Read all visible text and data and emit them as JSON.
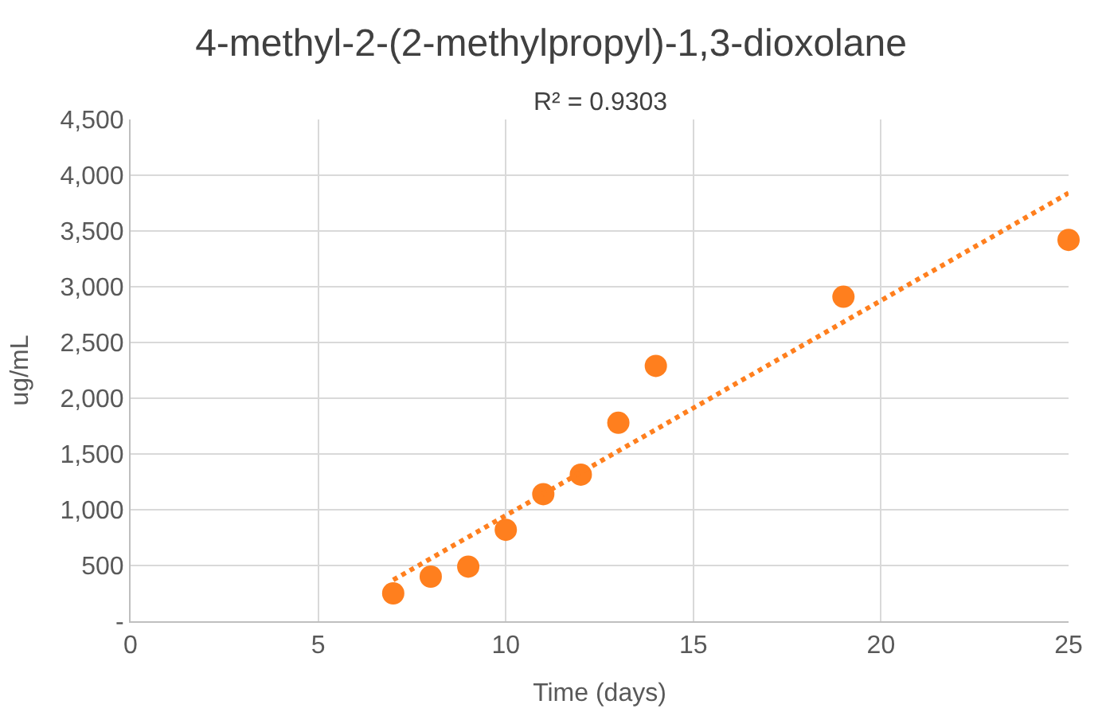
{
  "chart_data": {
    "type": "scatter",
    "title": "4-methyl-2-(2-methylpropyl)-1,3-dioxolane",
    "subtitle": "R² = 0.9303",
    "xlabel": "Time (days)",
    "ylabel": "ug/mL",
    "x": [
      7,
      8,
      9,
      10,
      11,
      12,
      13,
      14,
      19,
      25
    ],
    "series": [
      {
        "color": "#ff7f1e",
        "values": [
          250,
          400,
          490,
          820,
          1140,
          1315,
          1780,
          2290,
          2910,
          3420
        ],
        "marker": "circle"
      },
      {
        "type": "line",
        "color": "#ff7f1e",
        "x": [
          7,
          25
        ],
        "values": [
          370,
          3840
        ],
        "line_style": "dotted",
        "marker": "none"
      }
    ],
    "xlim": [
      0,
      25
    ],
    "xticks": [
      0,
      5,
      10,
      15,
      20,
      25
    ],
    "ylim": [
      0,
      4500
    ],
    "yticks": [
      {
        "value": 0,
        "label": "-"
      },
      {
        "value": 500,
        "label": "500"
      },
      {
        "value": 1000,
        "label": "1,000"
      },
      {
        "value": 1500,
        "label": "1,500"
      },
      {
        "value": 2000,
        "label": "2,000"
      },
      {
        "value": 2500,
        "label": "2,500"
      },
      {
        "value": 3000,
        "label": "3,000"
      },
      {
        "value": 3500,
        "label": "3,500"
      },
      {
        "value": 4000,
        "label": "4,000"
      },
      {
        "value": 4500,
        "label": "4,500"
      }
    ],
    "grid": true
  }
}
